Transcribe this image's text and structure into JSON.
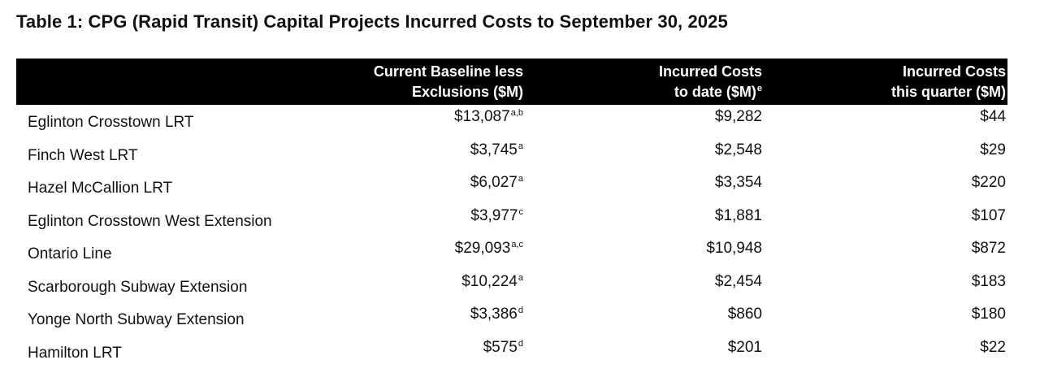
{
  "title": "Table 1: CPG (Rapid Transit) Capital Projects Incurred Costs to September 30, 2025",
  "headers": {
    "baseline_line1": "Current Baseline less",
    "baseline_line2": "Exclusions ($M)",
    "incurred_line1": "Incurred Costs",
    "incurred_line2": "to date ($M)",
    "incurred_note": "e",
    "quarter_line1": "Incurred Costs",
    "quarter_line2": "this quarter ($M)"
  },
  "rows": [
    {
      "project": "Eglinton Crosstown LRT",
      "baseline": "$13,087",
      "note": "a,b",
      "to_date": "$9,282",
      "quarter": "$44"
    },
    {
      "project": "Finch West LRT",
      "baseline": "$3,745",
      "note": "a",
      "to_date": "$2,548",
      "quarter": "$29"
    },
    {
      "project": "Hazel McCallion LRT",
      "baseline": "$6,027",
      "note": "a",
      "to_date": "$3,354",
      "quarter": "$220"
    },
    {
      "project": "Eglinton Crosstown West Extension",
      "baseline": "$3,977",
      "note": "c",
      "to_date": "$1,881",
      "quarter": "$107"
    },
    {
      "project": "Ontario Line",
      "baseline": "$29,093",
      "note": "a,c",
      "to_date": "$10,948",
      "quarter": "$872"
    },
    {
      "project": "Scarborough Subway Extension",
      "baseline": "$10,224",
      "note": "a",
      "to_date": "$2,454",
      "quarter": "$183"
    },
    {
      "project": "Yonge North Subway Extension",
      "baseline": "$3,386",
      "note": "d",
      "to_date": "$860",
      "quarter": "$180"
    },
    {
      "project": "Hamilton LRT",
      "baseline": "$575",
      "note": "d",
      "to_date": "$201",
      "quarter": "$22"
    }
  ]
}
